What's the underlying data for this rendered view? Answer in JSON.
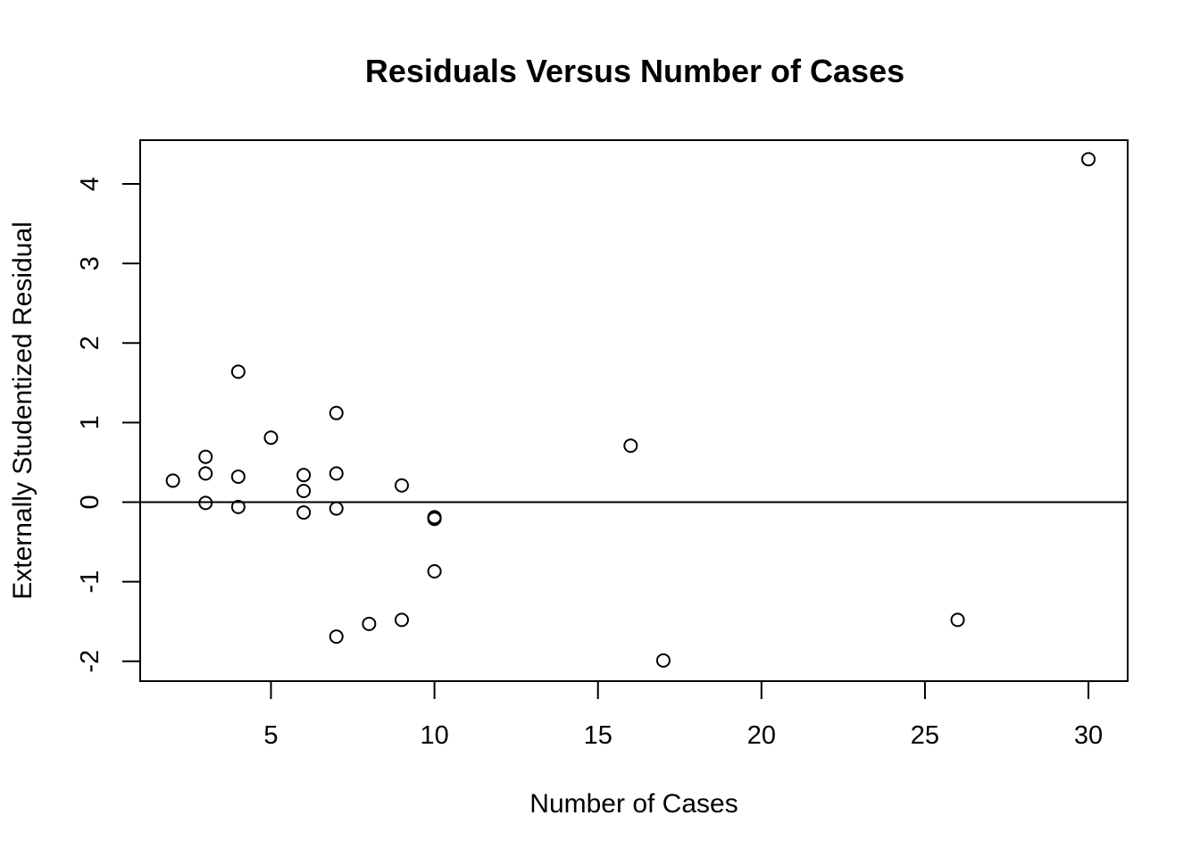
{
  "chart_data": {
    "type": "scatter",
    "title": "Residuals Versus Number of Cases",
    "xlabel": "Number of Cases",
    "ylabel": "Externally Studentized Residual",
    "xlim": [
      1,
      31.2
    ],
    "ylim": [
      -2.25,
      4.55
    ],
    "xticks": [
      5,
      10,
      15,
      20,
      25,
      30
    ],
    "yticks": [
      -2,
      -1,
      0,
      1,
      2,
      3,
      4
    ],
    "reference_line": {
      "orientation": "horizontal",
      "y": 0
    },
    "grid": false,
    "points": [
      {
        "x": 2,
        "y": 0.27
      },
      {
        "x": 3,
        "y": 0.57
      },
      {
        "x": 3,
        "y": 0.36
      },
      {
        "x": 3,
        "y": -0.01
      },
      {
        "x": 4,
        "y": 1.64
      },
      {
        "x": 4,
        "y": 0.32
      },
      {
        "x": 4,
        "y": -0.06
      },
      {
        "x": 5,
        "y": 0.81
      },
      {
        "x": 6,
        "y": 0.34
      },
      {
        "x": 6,
        "y": 0.14
      },
      {
        "x": 6,
        "y": -0.13
      },
      {
        "x": 7,
        "y": 1.12
      },
      {
        "x": 7,
        "y": 0.36
      },
      {
        "x": 7,
        "y": -0.08
      },
      {
        "x": 7,
        "y": -1.69
      },
      {
        "x": 8,
        "y": -1.53
      },
      {
        "x": 9,
        "y": 0.21
      },
      {
        "x": 9,
        "y": -1.48
      },
      {
        "x": 10,
        "y": -0.19
      },
      {
        "x": 10,
        "y": -0.21
      },
      {
        "x": 10,
        "y": -0.87
      },
      {
        "x": 16,
        "y": 0.71
      },
      {
        "x": 17,
        "y": -1.99
      },
      {
        "x": 26,
        "y": -1.48
      },
      {
        "x": 30,
        "y": 4.31
      }
    ]
  }
}
